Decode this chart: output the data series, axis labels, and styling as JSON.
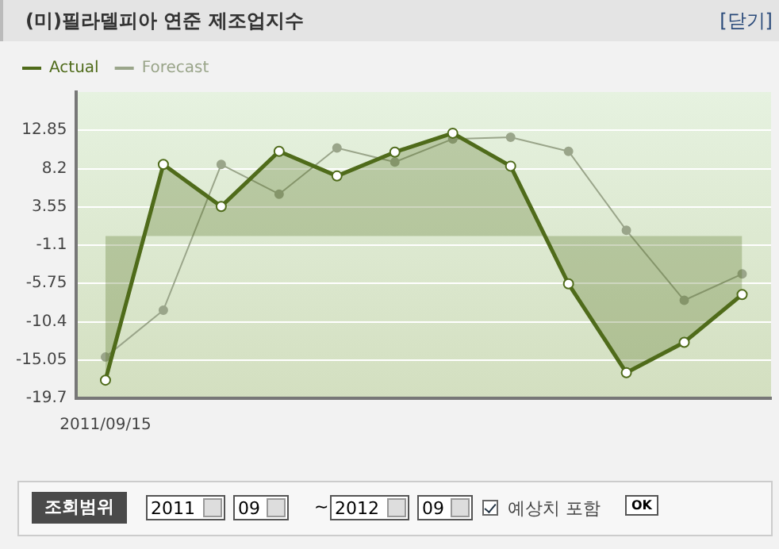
{
  "chart_data": {
    "type": "line",
    "title": "(미)필라델피아 연준 제조업지수",
    "categories": [
      "2011/09/15",
      null,
      null,
      null,
      null,
      null,
      null,
      null,
      null,
      null,
      null,
      null
    ],
    "series": [
      {
        "name": "Actual",
        "type": "area",
        "color": "#4f6b1a",
        "values": [
          -17.5,
          8.7,
          3.6,
          10.3,
          7.3,
          10.2,
          12.5,
          8.5,
          -5.8,
          -16.6,
          -12.9,
          -7.1
        ]
      },
      {
        "name": "Forecast",
        "type": "line",
        "color": "#9aa58a",
        "values": [
          -14.7,
          -9.0,
          8.7,
          5.1,
          10.7,
          9.0,
          11.8,
          12.0,
          10.3,
          0.7,
          -7.8,
          -4.6
        ]
      }
    ],
    "ylim": [
      -19.7,
      17.5
    ],
    "yticks": [
      -19.7,
      -15.05,
      -10.4,
      -5.75,
      -1.1,
      3.55,
      8.2,
      12.85
    ],
    "grid": "y",
    "legend": "top left",
    "marker": "circle",
    "annotations": [
      "[닫기]",
      "조회범위",
      "2011",
      "09",
      "~",
      "2012",
      "09",
      "예상치 포함",
      "OK"
    ]
  }
}
